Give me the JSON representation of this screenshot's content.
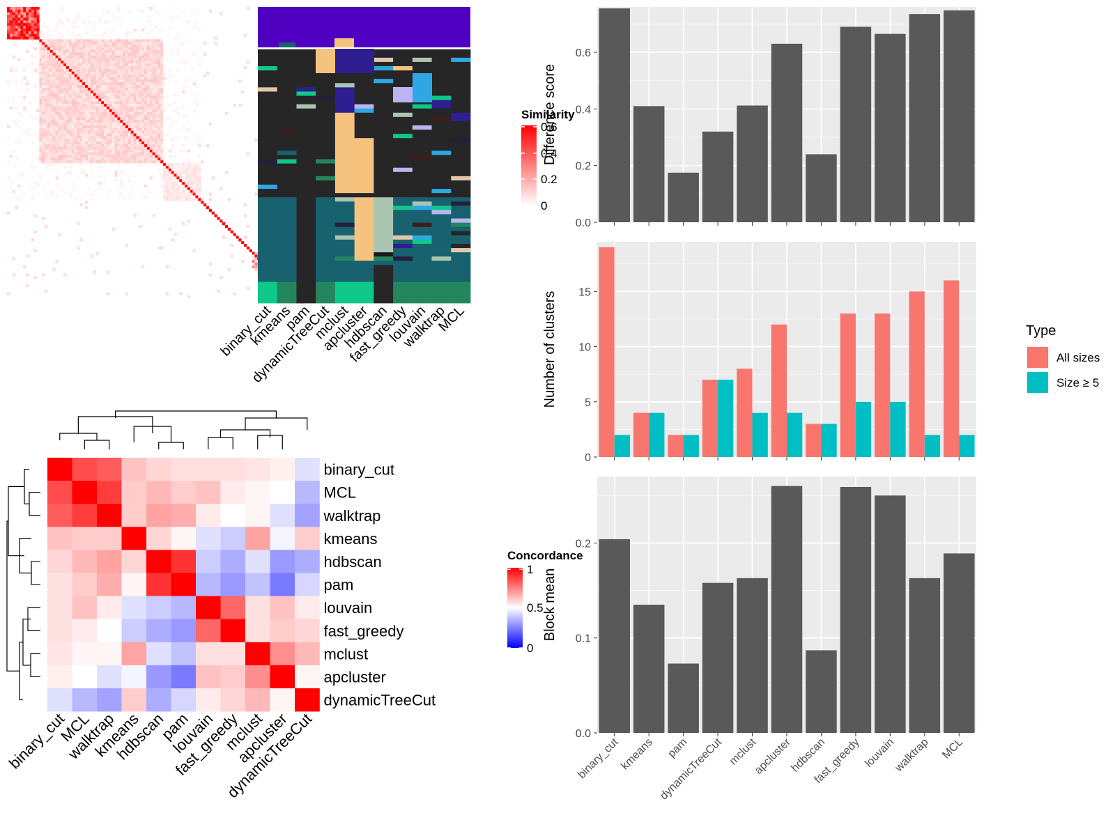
{
  "chart_data": [
    {
      "type": "heatmap",
      "title": "",
      "legend": {
        "title": "Similarity",
        "ticks": [
          "0",
          "0.2",
          "0.4",
          "0.6"
        ],
        "placement": "right"
      },
      "description_colors": {
        "low": "#ffffff",
        "high": "#ff0000"
      }
    },
    {
      "type": "heatmap",
      "categories": [
        "binary_cut",
        "kmeans",
        "pam",
        "dynamicTreeCut",
        "mclust",
        "apcluster",
        "hdbscan",
        "fast_greedy",
        "louvain",
        "walktrap",
        "MCL"
      ]
    },
    {
      "type": "heatmap",
      "rows": [
        "binary_cut",
        "MCL",
        "walktrap",
        "kmeans",
        "hdbscan",
        "pam",
        "louvain",
        "fast_greedy",
        "mclust",
        "apcluster",
        "dynamicTreeCut"
      ],
      "columns": [
        "binary_cut",
        "MCL",
        "walktrap",
        "kmeans",
        "hdbscan",
        "pam",
        "louvain",
        "fast_greedy",
        "mclust",
        "apcluster",
        "dynamicTreeCut"
      ],
      "values": [
        [
          1.0,
          0.85,
          0.82,
          0.62,
          0.58,
          0.56,
          0.56,
          0.56,
          0.55,
          0.53,
          0.44
        ],
        [
          0.85,
          1.0,
          0.88,
          0.6,
          0.64,
          0.6,
          0.62,
          0.54,
          0.52,
          0.5,
          0.36
        ],
        [
          0.82,
          0.88,
          1.0,
          0.6,
          0.68,
          0.66,
          0.54,
          0.5,
          0.52,
          0.44,
          0.32
        ],
        [
          0.62,
          0.6,
          0.6,
          1.0,
          0.58,
          0.52,
          0.44,
          0.4,
          0.68,
          0.48,
          0.6
        ],
        [
          0.58,
          0.64,
          0.68,
          0.58,
          1.0,
          0.9,
          0.4,
          0.34,
          0.44,
          0.3,
          0.34
        ],
        [
          0.56,
          0.6,
          0.66,
          0.52,
          0.9,
          1.0,
          0.36,
          0.3,
          0.38,
          0.24,
          0.42
        ],
        [
          0.56,
          0.62,
          0.54,
          0.44,
          0.4,
          0.36,
          1.0,
          0.8,
          0.56,
          0.62,
          0.54
        ],
        [
          0.56,
          0.54,
          0.5,
          0.4,
          0.34,
          0.3,
          0.8,
          1.0,
          0.56,
          0.6,
          0.58
        ],
        [
          0.55,
          0.52,
          0.52,
          0.68,
          0.44,
          0.38,
          0.56,
          0.56,
          1.0,
          0.72,
          0.64
        ],
        [
          0.53,
          0.5,
          0.44,
          0.48,
          0.3,
          0.24,
          0.62,
          0.6,
          0.72,
          1.0,
          0.52
        ],
        [
          0.44,
          0.36,
          0.32,
          0.6,
          0.34,
          0.42,
          0.54,
          0.58,
          0.64,
          0.52,
          1.0
        ]
      ],
      "legend": {
        "title": "Concordance",
        "ticks": [
          "0",
          "0.5",
          "1"
        ],
        "placement": "right"
      },
      "colors": {
        "low": "#0000ff",
        "mid": "#ffffff",
        "high": "#ff0000"
      }
    },
    {
      "type": "bar",
      "categories": [
        "binary_cut",
        "kmeans",
        "pam",
        "dynamicTreeCut",
        "mclust",
        "apcluster",
        "hdbscan",
        "fast_greedy",
        "louvain",
        "walktrap",
        "MCL"
      ],
      "values": [
        0.755,
        0.41,
        0.175,
        0.32,
        0.412,
        0.63,
        0.24,
        0.69,
        0.665,
        0.735,
        0.748
      ],
      "ylabel": "Difference score",
      "yticks": [
        "0.0",
        "0.2",
        "0.4",
        "0.6"
      ],
      "ylim": [
        0,
        0.76
      ],
      "grid": true,
      "bar_color": "#595959"
    },
    {
      "type": "bar",
      "categories": [
        "binary_cut",
        "kmeans",
        "pam",
        "dynamicTreeCut",
        "mclust",
        "apcluster",
        "hdbscan",
        "fast_greedy",
        "louvain",
        "walktrap",
        "MCL"
      ],
      "series": [
        {
          "name": "All sizes",
          "values": [
            19,
            4,
            2,
            7,
            8,
            12,
            3,
            13,
            13,
            15,
            16
          ],
          "color": "#f8766d"
        },
        {
          "name": "Size ≥ 5",
          "values": [
            2,
            4,
            2,
            7,
            4,
            4,
            3,
            5,
            5,
            2,
            2
          ],
          "color": "#00bfc4"
        }
      ],
      "ylabel": "Number of clusters",
      "yticks": [
        "0",
        "5",
        "10",
        "15"
      ],
      "ylim": [
        0,
        19.5
      ],
      "grid": true,
      "legend": {
        "title": "Type",
        "placement": "right"
      }
    },
    {
      "type": "bar",
      "categories": [
        "binary_cut",
        "kmeans",
        "pam",
        "dynamicTreeCut",
        "mclust",
        "apcluster",
        "hdbscan",
        "fast_greedy",
        "louvain",
        "walktrap",
        "MCL"
      ],
      "values": [
        0.204,
        0.135,
        0.073,
        0.158,
        0.163,
        0.26,
        0.087,
        0.259,
        0.25,
        0.163,
        0.189
      ],
      "ylabel": "Block mean",
      "yticks": [
        "0.0",
        "0.1",
        "0.2"
      ],
      "ylim": [
        0,
        0.27
      ],
      "grid": true,
      "bar_color": "#595959"
    }
  ]
}
